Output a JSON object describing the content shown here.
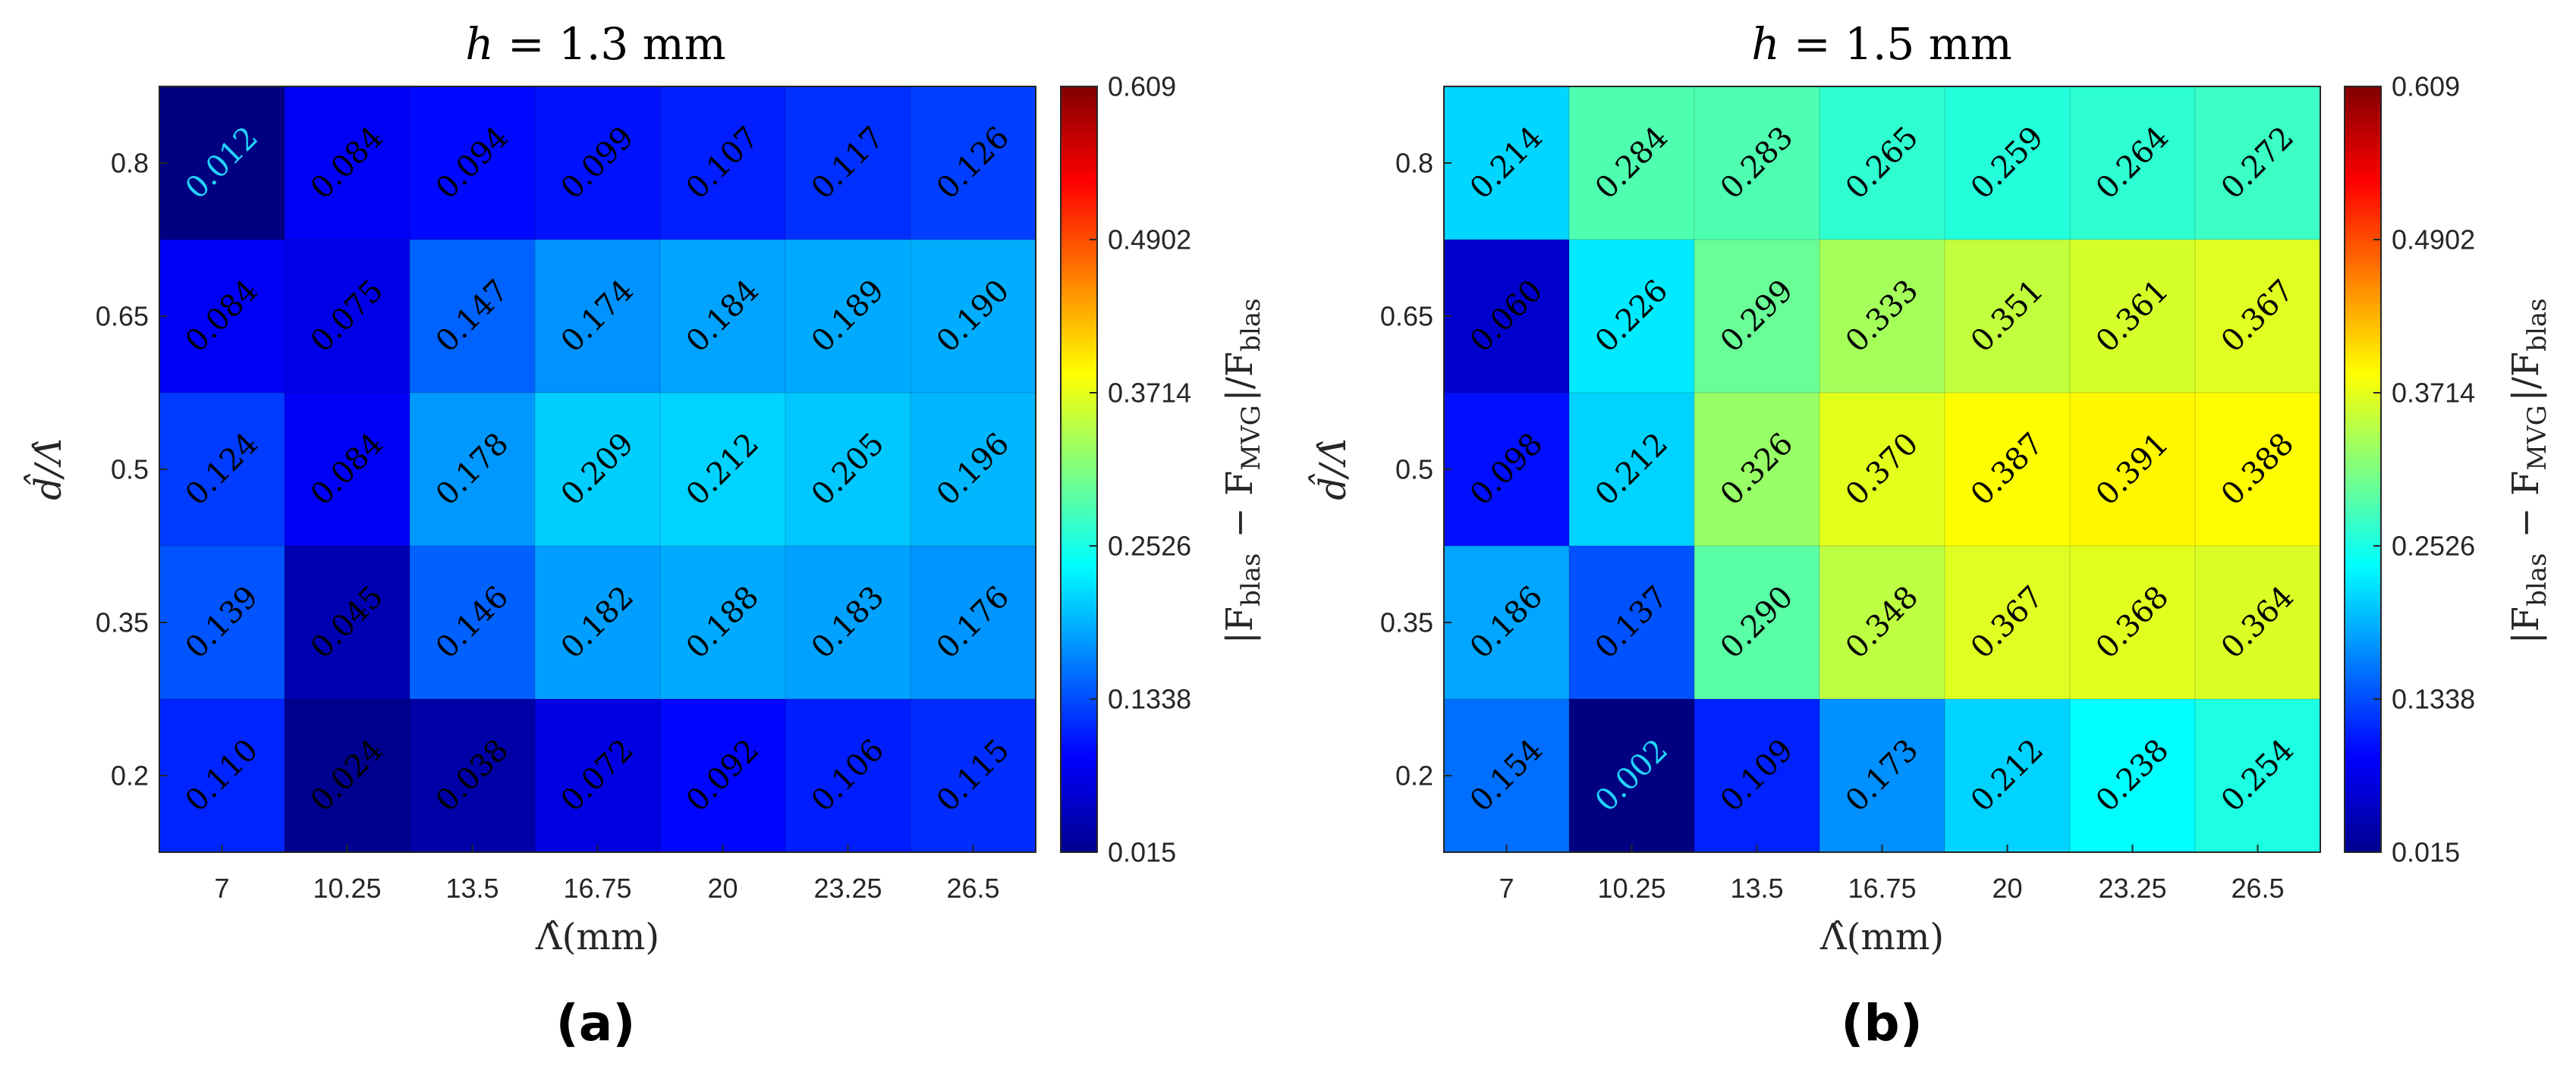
{
  "chart_data": [
    {
      "type": "heatmap",
      "title": "h = 1.3 mm",
      "title_var": "h",
      "title_rest": " = 1.3 mm",
      "panel_label": "(a)",
      "xlabel": "Λ̂(mm)",
      "ylabel": "d̂/Λ̂",
      "x_ticks": [
        "7",
        "10.25",
        "13.5",
        "16.75",
        "20",
        "23.25",
        "26.5"
      ],
      "y_ticks": [
        "0.8",
        "0.65",
        "0.5",
        "0.35",
        "0.2"
      ],
      "values": [
        [
          0.012,
          0.084,
          0.094,
          0.099,
          0.107,
          0.117,
          0.126
        ],
        [
          0.084,
          0.075,
          0.147,
          0.174,
          0.184,
          0.189,
          0.19
        ],
        [
          0.124,
          0.084,
          0.178,
          0.209,
          0.212,
          0.205,
          0.196
        ],
        [
          0.139,
          0.045,
          0.146,
          0.182,
          0.188,
          0.183,
          0.176
        ],
        [
          0.11,
          0.024,
          0.038,
          0.072,
          0.092,
          0.106,
          0.115
        ]
      ],
      "labels": [
        [
          "0.012",
          "0.084",
          "0.094",
          "0.099",
          "0.107",
          "0.117",
          "0.126"
        ],
        [
          "0.084",
          "0.075",
          "0.147",
          "0.174",
          "0.184",
          "0.189",
          "0.190"
        ],
        [
          "0.124",
          "0.084",
          "0.178",
          "0.209",
          "0.212",
          "0.205",
          "0.196"
        ],
        [
          "0.139",
          "0.045",
          "0.146",
          "0.182",
          "0.188",
          "0.183",
          "0.176"
        ],
        [
          "0.110",
          "0.024",
          "0.038",
          "0.072",
          "0.092",
          "0.106",
          "0.115"
        ]
      ],
      "highlight_cells": [
        [
          0,
          0
        ]
      ],
      "highlight_color": "#22d4ff",
      "clim": [
        0.015,
        0.609
      ],
      "colorbar_ticks": [
        "0.609",
        "0.4902",
        "0.3714",
        "0.2526",
        "0.1338",
        "0.015"
      ],
      "colorbar_label": "|F_blas − F_MVG|/F_blas",
      "colormap": "jet"
    },
    {
      "type": "heatmap",
      "title": "h = 1.5 mm",
      "title_var": "h",
      "title_rest": " = 1.5 mm",
      "panel_label": "(b)",
      "xlabel": "Λ̂(mm)",
      "ylabel": "d̂/Λ̂",
      "x_ticks": [
        "7",
        "10.25",
        "13.5",
        "16.75",
        "20",
        "23.25",
        "26.5"
      ],
      "y_ticks": [
        "0.8",
        "0.65",
        "0.5",
        "0.35",
        "0.2"
      ],
      "values": [
        [
          0.214,
          0.284,
          0.283,
          0.265,
          0.259,
          0.264,
          0.272
        ],
        [
          0.06,
          0.226,
          0.299,
          0.333,
          0.351,
          0.361,
          0.367
        ],
        [
          0.098,
          0.212,
          0.326,
          0.37,
          0.387,
          0.391,
          0.388
        ],
        [
          0.186,
          0.137,
          0.29,
          0.348,
          0.367,
          0.368,
          0.364
        ],
        [
          0.154,
          0.002,
          0.109,
          0.173,
          0.212,
          0.238,
          0.254
        ]
      ],
      "labels": [
        [
          "0.214",
          "0.284",
          "0.283",
          "0.265",
          "0.259",
          "0.264",
          "0.272"
        ],
        [
          "0.060",
          "0.226",
          "0.299",
          "0.333",
          "0.351",
          "0.361",
          "0.367"
        ],
        [
          "0.098",
          "0.212",
          "0.326",
          "0.370",
          "0.387",
          "0.391",
          "0.388"
        ],
        [
          "0.186",
          "0.137",
          "0.290",
          "0.348",
          "0.367",
          "0.368",
          "0.364"
        ],
        [
          "0.154",
          "0.002",
          "0.109",
          "0.173",
          "0.212",
          "0.238",
          "0.254"
        ]
      ],
      "highlight_cells": [
        [
          4,
          1
        ]
      ],
      "highlight_color": "#22d4ff",
      "clim": [
        0.015,
        0.609
      ],
      "colorbar_ticks": [
        "0.609",
        "0.4902",
        "0.3714",
        "0.2526",
        "0.1338",
        "0.015"
      ],
      "colorbar_label": "|F_blas − F_MVG|/F_blas",
      "colormap": "jet"
    }
  ]
}
